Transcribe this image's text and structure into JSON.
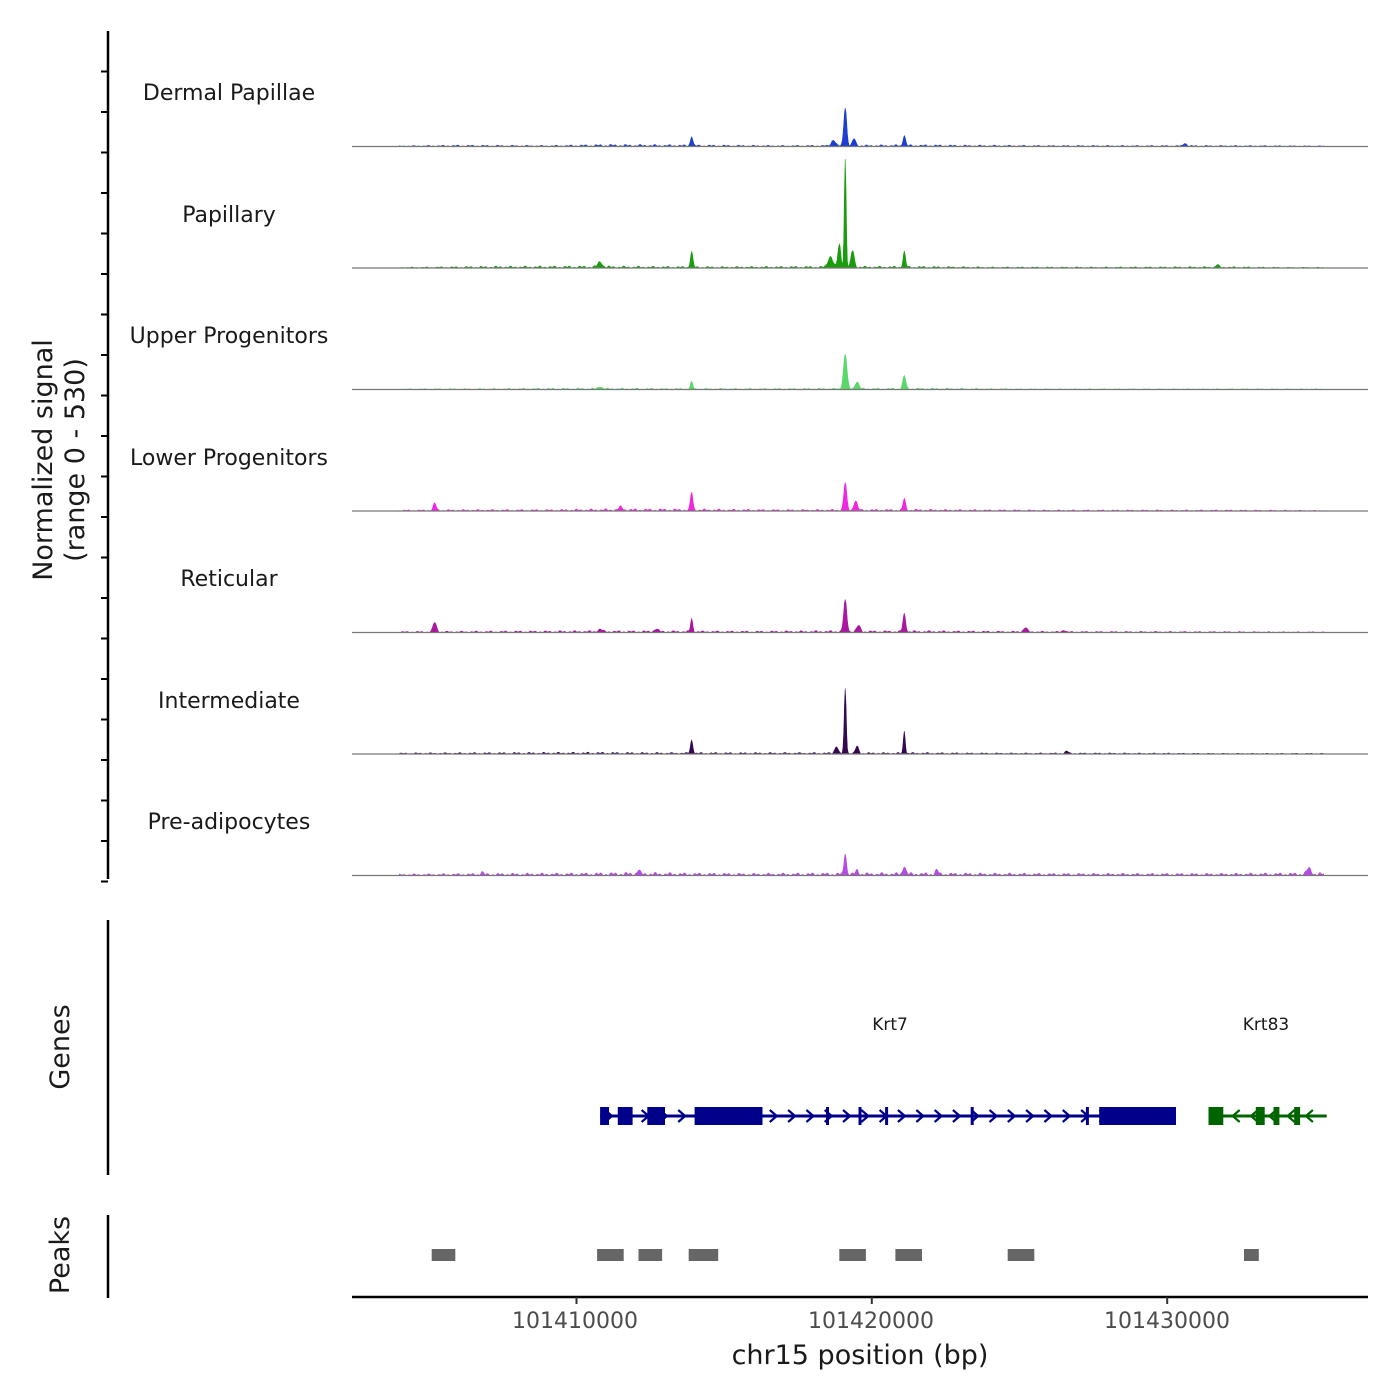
{
  "chart_data": {
    "type": "coverage",
    "region": {
      "chrom": "chr15",
      "start": 101402400,
      "end": 101436800
    },
    "ylabel_main": "Normalized signal",
    "ylabel_range": "(range 0 - 530)",
    "ylim": [
      0,
      530
    ],
    "xlabel": "chr15 position (bp)",
    "x_ticks": [
      101410000,
      101420000,
      101430000
    ],
    "x_tick_labels": [
      "101410000",
      "101420000",
      "101430000"
    ],
    "tracks": [
      {
        "name": "Dermal Papillae",
        "color": "#1c3fd0",
        "baseline": [
          [
            101404000,
            2
          ],
          [
            101406000,
            4
          ],
          [
            101409000,
            3
          ],
          [
            101411000,
            6
          ],
          [
            101413000,
            5
          ],
          [
            101415000,
            4
          ],
          [
            101417000,
            3
          ],
          [
            101421500,
            5
          ],
          [
            101423000,
            4
          ],
          [
            101426000,
            3
          ],
          [
            101429000,
            3
          ],
          [
            101432000,
            3
          ],
          [
            101435000,
            2
          ]
        ],
        "peaks": [
          [
            101413900,
            40,
            90
          ],
          [
            101418700,
            25,
            150
          ],
          [
            101419100,
            160,
            110
          ],
          [
            101419400,
            30,
            120
          ],
          [
            101421100,
            45,
            90
          ],
          [
            101430600,
            12,
            120
          ]
        ]
      },
      {
        "name": "Papillary",
        "color": "#1a9c0e",
        "baseline": [
          [
            101404000,
            2
          ],
          [
            101407000,
            5
          ],
          [
            101410500,
            6
          ],
          [
            101412000,
            5
          ],
          [
            101415000,
            4
          ],
          [
            101418000,
            5
          ],
          [
            101421500,
            5
          ],
          [
            101424000,
            3
          ],
          [
            101428000,
            3
          ],
          [
            101431700,
            4
          ],
          [
            101434000,
            2
          ]
        ],
        "peaks": [
          [
            101410800,
            22,
            160
          ],
          [
            101413900,
            65,
            90
          ],
          [
            101418600,
            45,
            180
          ],
          [
            101418900,
            95,
            110
          ],
          [
            101419100,
            450,
            70
          ],
          [
            101419350,
            70,
            120
          ],
          [
            101421100,
            65,
            90
          ],
          [
            101431700,
            12,
            100
          ]
        ]
      },
      {
        "name": "Upper Progenitors",
        "color": "#5ad86a",
        "baseline": [
          [
            101404000,
            2
          ],
          [
            101408000,
            3
          ],
          [
            101410500,
            4
          ],
          [
            101413000,
            3
          ],
          [
            101417000,
            3
          ],
          [
            101421500,
            4
          ],
          [
            101425000,
            2
          ],
          [
            101430000,
            2
          ],
          [
            101434000,
            2
          ]
        ],
        "peaks": [
          [
            101410800,
            10,
            140
          ],
          [
            101413900,
            30,
            90
          ],
          [
            101419100,
            145,
            130
          ],
          [
            101419500,
            30,
            140
          ],
          [
            101421100,
            55,
            110
          ]
        ]
      },
      {
        "name": "Lower Progenitors",
        "color": "#ef27de",
        "baseline": [
          [
            101404000,
            3
          ],
          [
            101406000,
            4
          ],
          [
            101409000,
            4
          ],
          [
            101411000,
            6
          ],
          [
            101413000,
            6
          ],
          [
            101415000,
            5
          ],
          [
            101417000,
            4
          ],
          [
            101421500,
            5
          ],
          [
            101423000,
            4
          ],
          [
            101426000,
            3
          ],
          [
            101429000,
            3
          ],
          [
            101432000,
            3
          ],
          [
            101435000,
            2
          ]
        ],
        "peaks": [
          [
            101405200,
            30,
            110
          ],
          [
            101411500,
            12,
            150
          ],
          [
            101413900,
            75,
            90
          ],
          [
            101419100,
            115,
            110
          ],
          [
            101419450,
            40,
            130
          ],
          [
            101421100,
            50,
            90
          ]
        ]
      },
      {
        "name": "Reticular",
        "color": "#a8179e",
        "baseline": [
          [
            101404000,
            3
          ],
          [
            101407000,
            4
          ],
          [
            101410000,
            5
          ],
          [
            101413000,
            5
          ],
          [
            101416000,
            4
          ],
          [
            101418000,
            5
          ],
          [
            101421500,
            5
          ],
          [
            101424000,
            4
          ],
          [
            101427000,
            3
          ],
          [
            101430000,
            3
          ],
          [
            101434000,
            2
          ]
        ],
        "peaks": [
          [
            101405200,
            40,
            130
          ],
          [
            101410800,
            10,
            160
          ],
          [
            101412700,
            12,
            140
          ],
          [
            101413900,
            55,
            80
          ],
          [
            101419100,
            130,
            120
          ],
          [
            101419550,
            25,
            140
          ],
          [
            101421100,
            75,
            100
          ],
          [
            101425200,
            18,
            140
          ],
          [
            101426500,
            8,
            120
          ]
        ]
      },
      {
        "name": "Intermediate",
        "color": "#35094f",
        "baseline": [
          [
            101404000,
            3
          ],
          [
            101407000,
            4
          ],
          [
            101410500,
            5
          ],
          [
            101413000,
            4
          ],
          [
            101416000,
            4
          ],
          [
            101421500,
            4
          ],
          [
            101424000,
            3
          ],
          [
            101428000,
            3
          ],
          [
            101432000,
            2
          ],
          [
            101435000,
            2
          ]
        ],
        "peaks": [
          [
            101413900,
            55,
            90
          ],
          [
            101418800,
            30,
            120
          ],
          [
            101419100,
            270,
            75
          ],
          [
            101419500,
            30,
            110
          ],
          [
            101421100,
            95,
            70
          ],
          [
            101426600,
            10,
            120
          ]
        ]
      },
      {
        "name": "Pre-adipocytes",
        "color": "#b54be5",
        "baseline": [
          [
            101404000,
            4
          ],
          [
            101407000,
            6
          ],
          [
            101410000,
            7
          ],
          [
            101412000,
            9
          ],
          [
            101414000,
            7
          ],
          [
            101416000,
            6
          ],
          [
            101418000,
            7
          ],
          [
            101421500,
            8
          ],
          [
            101423000,
            7
          ],
          [
            101426000,
            6
          ],
          [
            101429000,
            6
          ],
          [
            101432000,
            6
          ],
          [
            101435000,
            8
          ]
        ],
        "peaks": [
          [
            101406800,
            12,
            80
          ],
          [
            101412100,
            18,
            100
          ],
          [
            101419100,
            90,
            90
          ],
          [
            101419500,
            18,
            100
          ],
          [
            101421100,
            35,
            110
          ],
          [
            101422200,
            18,
            110
          ],
          [
            101434800,
            25,
            160
          ]
        ]
      }
    ],
    "genes": [
      {
        "name": "Krt7",
        "strand": "+",
        "color": "#00008b",
        "label_x": 101420700,
        "start": 101410800,
        "end": 101430300,
        "exons": [
          [
            101410800,
            101411100
          ],
          [
            101411400,
            101411900
          ],
          [
            101412400,
            101413000
          ],
          [
            101414000,
            101416300
          ],
          [
            101427700,
            101430300
          ]
        ],
        "introns_marks": [
          101418500,
          101419600,
          101420500,
          101423400,
          101427300
        ]
      },
      {
        "name": "Krt83",
        "strand": "-",
        "color": "#006400",
        "label_x": 101433300,
        "start": 101431400,
        "end": 101435400,
        "exons": [
          [
            101431400,
            101431900
          ],
          [
            101433000,
            101433300
          ],
          [
            101433600,
            101433800
          ],
          [
            101434300,
            101434500
          ]
        ],
        "introns_marks": []
      }
    ],
    "peaks": [
      [
        101405100,
        101405900
      ],
      [
        101410700,
        101411600
      ],
      [
        101412100,
        101412900
      ],
      [
        101413800,
        101414800
      ],
      [
        101418900,
        101419800
      ],
      [
        101420800,
        101421700
      ],
      [
        101424600,
        101425500
      ],
      [
        101432600,
        101433100
      ]
    ],
    "peak_color": "#666666",
    "panel_labels": {
      "genes": "Genes",
      "peaks": "Peaks"
    }
  }
}
